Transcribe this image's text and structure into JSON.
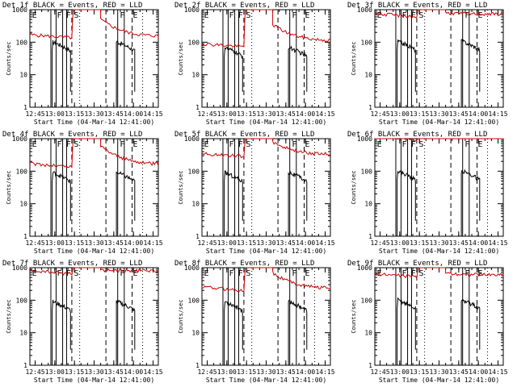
{
  "panel_titles": [
    "Det 1f BLACK = Events, RED = LLD",
    "Det 2f BLACK = Events, RED = LLD",
    "Det 3f BLACK = Events, RED = LLD",
    "Det 4f BLACK = Events, RED = LLD",
    "Det 5f BLACK = Events, RED = LLD",
    "Det 6f BLACK = Events, RED = LLD",
    "Det 7f BLACK = Events, RED = LLD",
    "Det 8f BLACK = Events, RED = LLD",
    "Det 9f BLACK = Events, RED = LLD"
  ],
  "xlabel": "Start Time (04-Mar-14 12:41:00)",
  "ylabel": "Counts/sec",
  "colors": {
    "events": "#000000",
    "lld": "#cc0000"
  },
  "chart_data": {
    "type": "line",
    "layout": "3x3 grid",
    "y_scale": "log",
    "ylim": [
      1,
      1000
    ],
    "y_ticks": [
      1,
      10,
      100,
      1000
    ],
    "y_tick_labels": [
      "1",
      "10",
      "100",
      "1000"
    ],
    "x_ticks": [
      "12:45",
      "13:00",
      "13:15",
      "13:30",
      "13:45",
      "14:00",
      "14:15"
    ],
    "x_range_minutes_after_12_41": [
      0,
      98
    ],
    "series_names": [
      "Events",
      "LLD"
    ],
    "vertical_markers": {
      "solid": [
        "12:57",
        "13:01",
        "13:06",
        "13:09",
        "13:48",
        "13:53"
      ],
      "dashed": [
        "13:13",
        "13:39",
        "13:59"
      ],
      "dotted": [
        "13:19",
        "14:07"
      ]
    },
    "marker_labels": [
      {
        "text": "E",
        "at": "12:42"
      },
      {
        "text": "F",
        "at": "13:01"
      },
      {
        "text": "F",
        "at": "13:08"
      },
      {
        "text": "S",
        "at": "13:14"
      },
      {
        "text": "F",
        "at": "13:49"
      },
      {
        "text": "E",
        "at": "13:59"
      }
    ],
    "panels": [
      {
        "name": "Det 1f",
        "events_level": 90,
        "lld": {
          "orbit1": 170,
          "orbit2_start": 500,
          "orbit2_end": 150
        }
      },
      {
        "name": "Det 2f",
        "events_level": 60,
        "lld": {
          "orbit1": 90,
          "orbit2_start": 350,
          "orbit2_end": 110
        }
      },
      {
        "name": "Det 3f",
        "events_level": 95,
        "lld": {
          "orbit1": 750,
          "orbit2_start": 800,
          "orbit2_end": 730
        }
      },
      {
        "name": "Det 4f",
        "events_level": 80,
        "lld": {
          "orbit1": 170,
          "orbit2_start": 600,
          "orbit2_end": 160
        }
      },
      {
        "name": "Det 5f",
        "events_level": 80,
        "lld": {
          "orbit1": 350,
          "orbit2_start": 800,
          "orbit2_end": 330
        }
      },
      {
        "name": "Det 6f",
        "events_level": 90,
        "lld": {
          "orbit1": 1200,
          "orbit2_start": 1200,
          "orbit2_end": 1200
        }
      },
      {
        "name": "Det 7f",
        "events_level": 80,
        "lld": {
          "orbit1": 800,
          "orbit2_start": 850,
          "orbit2_end": 800
        }
      },
      {
        "name": "Det 8f",
        "events_level": 80,
        "lld": {
          "orbit1": 250,
          "orbit2_start": 700,
          "orbit2_end": 230
        }
      },
      {
        "name": "Det 9f",
        "events_level": 90,
        "lld": {
          "orbit1": 650,
          "orbit2_start": 700,
          "orbit2_end": 600
        }
      }
    ]
  }
}
